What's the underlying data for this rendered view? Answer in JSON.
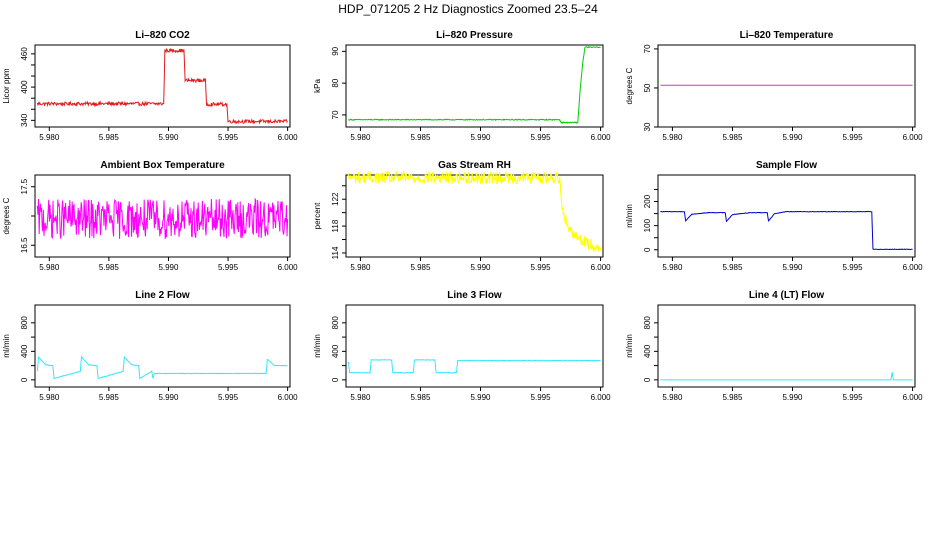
{
  "page": {
    "title": "HDP_071205  2 Hz Diagnostics Zoomed 23.5–24"
  },
  "chart_data": [
    {
      "type": "line",
      "title": "Li–820 CO2",
      "ylabel": "Licor ppm",
      "xlabel": "",
      "xlim": [
        5.9788,
        6.0002
      ],
      "ylim": [
        328,
        476
      ],
      "xticks": [
        5.98,
        5.985,
        5.99,
        5.995,
        6.0
      ],
      "xtick_labels": [
        "5.980",
        "5.985",
        "5.990",
        "5.995",
        "6.000"
      ],
      "yticks": [
        340,
        360,
        380,
        400,
        420,
        440,
        460
      ],
      "ytick_labels": [
        "340",
        "",
        "",
        "400",
        "",
        "",
        "460"
      ],
      "color": "#e41a1c",
      "noise": 3,
      "series": [
        {
          "x": [
            5.979,
            5.9896,
            5.9897,
            5.9913,
            5.9914,
            5.9931,
            5.9932,
            5.9949,
            5.995,
            5.9983,
            5.9984,
            6.0
          ],
          "y": [
            370,
            370,
            466,
            466,
            412,
            412,
            369,
            369,
            338,
            338,
            338,
            338
          ]
        }
      ]
    },
    {
      "type": "line",
      "title": "Li–820 Pressure",
      "ylabel": "kPa",
      "xlabel": "",
      "xlim": [
        5.9788,
        6.0002
      ],
      "ylim": [
        66.2,
        92
      ],
      "xticks": [
        5.98,
        5.985,
        5.99,
        5.995,
        6.0
      ],
      "xtick_labels": [
        "5.980",
        "5.985",
        "5.990",
        "5.995",
        "6.000"
      ],
      "yticks": [
        70,
        80,
        90
      ],
      "ytick_labels": [
        "70",
        "80",
        "90"
      ],
      "color": "#00cc00",
      "noise": 0.15,
      "series": [
        {
          "x": [
            5.979,
            5.9966,
            5.9967,
            5.9981,
            5.9983,
            5.9985,
            5.9987,
            6.0
          ],
          "y": [
            68.5,
            68.5,
            67.6,
            67.6,
            78,
            86,
            91.3,
            91.3
          ]
        }
      ]
    },
    {
      "type": "line",
      "title": "Li–820 Temperature",
      "ylabel": "degrees C",
      "xlabel": "",
      "xlim": [
        5.9788,
        6.0002
      ],
      "ylim": [
        30,
        72
      ],
      "xticks": [
        5.98,
        5.985,
        5.99,
        5.995,
        6.0
      ],
      "xtick_labels": [
        "5.980",
        "5.985",
        "5.990",
        "5.995",
        "6.000"
      ],
      "yticks": [
        30,
        50,
        70
      ],
      "ytick_labels": [
        "30",
        "50",
        "70"
      ],
      "color": "#cc33cc",
      "noise": 0,
      "series": [
        {
          "x": [
            5.979,
            6.0
          ],
          "y": [
            51.4,
            51.4
          ]
        }
      ]
    },
    {
      "type": "line",
      "title": "Ambient Box Temperature",
      "ylabel": "degrees C",
      "xlabel": "",
      "xlim": [
        5.9788,
        6.0002
      ],
      "ylim": [
        16.3,
        17.7
      ],
      "xticks": [
        5.98,
        5.985,
        5.99,
        5.995,
        6.0
      ],
      "xtick_labels": [
        "5.980",
        "5.985",
        "5.990",
        "5.995",
        "6.000"
      ],
      "yticks": [
        16.5,
        17.0,
        17.5
      ],
      "ytick_labels": [
        "16.5",
        "",
        "17.5"
      ],
      "color": "#ff00ff",
      "noise": 0.34,
      "series": [
        {
          "x": [
            5.979,
            6.0
          ],
          "y": [
            16.95,
            16.95
          ]
        }
      ]
    },
    {
      "type": "line",
      "title": "Gas Stream RH",
      "ylabel": "percent",
      "xlabel": "",
      "xlim": [
        5.9788,
        6.0002
      ],
      "ylim": [
        113.4,
        125.6
      ],
      "xticks": [
        5.98,
        5.985,
        5.99,
        5.995,
        6.0
      ],
      "xtick_labels": [
        "5.980",
        "5.985",
        "5.990",
        "5.995",
        "6.000"
      ],
      "yticks": [
        114,
        116,
        118,
        120,
        122,
        124
      ],
      "ytick_labels": [
        "114",
        "",
        "118",
        "",
        "122",
        ""
      ],
      "color": "#ffff00",
      "noise": 0.9,
      "series": [
        {
          "x": [
            5.979,
            5.9966,
            5.9968,
            5.9972,
            5.998,
            5.999,
            6.0
          ],
          "y": [
            125.2,
            125.2,
            121.0,
            118.0,
            116.5,
            115.3,
            114.8
          ]
        }
      ]
    },
    {
      "type": "line",
      "title": "Sample Flow",
      "ylabel": "ml/min",
      "xlabel": "",
      "xlim": [
        5.9788,
        6.0002
      ],
      "ylim": [
        -30,
        310
      ],
      "xticks": [
        5.98,
        5.985,
        5.99,
        5.995,
        6.0
      ],
      "xtick_labels": [
        "5.980",
        "5.985",
        "5.990",
        "5.995",
        "6.000"
      ],
      "yticks": [
        0,
        50,
        100,
        150,
        200,
        250
      ],
      "ytick_labels": [
        "0",
        "",
        "100",
        "",
        "200",
        ""
      ],
      "color": "#0000cc",
      "noise": 1,
      "series": [
        {
          "x": [
            5.979,
            5.981,
            5.9811,
            5.9816,
            5.983,
            5.9844,
            5.9845,
            5.985,
            5.9865,
            5.9879,
            5.988,
            5.9885,
            5.9895,
            5.9966,
            5.9967,
            6.0
          ],
          "y": [
            158,
            158,
            120,
            147,
            154,
            154,
            118,
            146,
            154,
            154,
            120,
            150,
            158,
            158,
            2,
            2
          ]
        }
      ]
    },
    {
      "type": "line",
      "title": "Line 2 Flow",
      "ylabel": "ml/min",
      "xlabel": "",
      "xlim": [
        5.9788,
        6.0002
      ],
      "ylim": [
        -100,
        1050
      ],
      "xticks": [
        5.98,
        5.985,
        5.99,
        5.995,
        6.0
      ],
      "xtick_labels": [
        "5.980",
        "5.985",
        "5.990",
        "5.995",
        "6.000"
      ],
      "yticks": [
        0,
        200,
        400,
        600,
        800
      ],
      "ytick_labels": [
        "0",
        "",
        "400",
        "",
        "800"
      ],
      "color": "#33e6ff",
      "noise": 4,
      "series": [
        {
          "x": [
            5.979,
            5.9791,
            5.9797,
            5.9803,
            5.9804,
            5.9826,
            5.9827,
            5.9833,
            5.984,
            5.9841,
            5.9862,
            5.9863,
            5.9869,
            5.9875,
            5.9876,
            5.9886,
            5.9887,
            5.9888,
            5.9982,
            5.9983,
            5.9989,
            6.0
          ],
          "y": [
            120,
            320,
            210,
            200,
            20,
            120,
            320,
            210,
            200,
            20,
            120,
            320,
            210,
            200,
            20,
            120,
            20,
            90,
            90,
            290,
            200,
            200
          ]
        }
      ]
    },
    {
      "type": "line",
      "title": "Line 3 Flow",
      "ylabel": "ml/min",
      "xlabel": "",
      "xlim": [
        5.9788,
        6.0002
      ],
      "ylim": [
        -100,
        1050
      ],
      "xticks": [
        5.98,
        5.985,
        5.99,
        5.995,
        6.0
      ],
      "xtick_labels": [
        "5.980",
        "5.985",
        "5.990",
        "5.995",
        "6.000"
      ],
      "yticks": [
        0,
        200,
        400,
        600,
        800
      ],
      "ytick_labels": [
        "0",
        "",
        "400",
        "",
        "800"
      ],
      "color": "#33e6ff",
      "noise": 4,
      "series": [
        {
          "x": [
            5.979,
            5.9791,
            5.9808,
            5.9809,
            5.9826,
            5.9827,
            5.9844,
            5.9845,
            5.9862,
            5.9863,
            5.988,
            5.9881,
            6.0
          ],
          "y": [
            250,
            100,
            100,
            280,
            280,
            100,
            100,
            280,
            280,
            100,
            100,
            270,
            270
          ]
        }
      ]
    },
    {
      "type": "line",
      "title": "Line 4 (LT) Flow",
      "ylabel": "ml/min",
      "xlabel": "",
      "xlim": [
        5.9788,
        6.0002
      ],
      "ylim": [
        -100,
        1050
      ],
      "xticks": [
        5.98,
        5.985,
        5.99,
        5.995,
        6.0
      ],
      "xtick_labels": [
        "5.980",
        "5.985",
        "5.990",
        "5.995",
        "6.000"
      ],
      "yticks": [
        0,
        200,
        400,
        600,
        800
      ],
      "ytick_labels": [
        "0",
        "",
        "400",
        "",
        "800"
      ],
      "color": "#33e6ff",
      "noise": 0,
      "series": [
        {
          "x": [
            5.979,
            5.9982,
            5.9983,
            5.9984,
            6.0
          ],
          "y": [
            0,
            0,
            110,
            0,
            0
          ]
        }
      ]
    }
  ]
}
